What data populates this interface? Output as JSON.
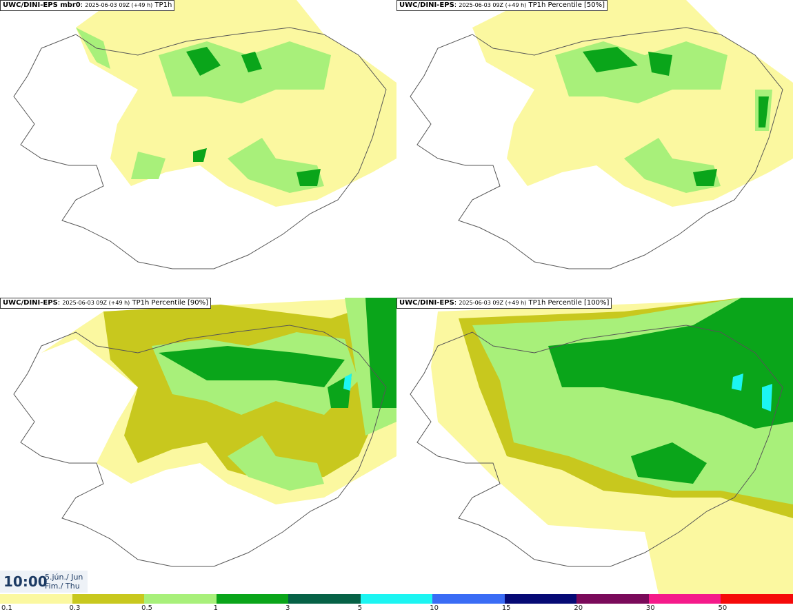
{
  "panels": [
    {
      "model": "UWC/DINI-EPS mbr0",
      "run": "2025-06-03 09Z (+49 h)",
      "field": "TP1h"
    },
    {
      "model": "UWC/DINI-EPS",
      "run": "2025-06-03 09Z (+49 h)",
      "field": "TP1h Percentile [50%]"
    },
    {
      "model": "UWC/DINI-EPS",
      "run": "2025-06-03 09Z (+49 h)",
      "field": "TP1h Percentile [90%]"
    },
    {
      "model": "UWC/DINI-EPS",
      "run": "2025-06-03 09Z (+49 h)",
      "field": "TP1h Percentile [100%]"
    }
  ],
  "valid_time": {
    "time": "10:00",
    "date": "5.jún./ Jun",
    "weekday": "Fim./ Thu"
  },
  "legend": {
    "labels": [
      "0.1",
      "0.3",
      "0.5",
      "1",
      "3",
      "5",
      "10",
      "15",
      "20",
      "30",
      "50"
    ],
    "colors": [
      "#fbf8a0",
      "#c8c81e",
      "#a8f07a",
      "#0aa51a",
      "#066246",
      "#1cf5f2",
      "#3a6cf5",
      "#060a75",
      "#7a0a5a",
      "#f51a8a",
      "#f50a0a"
    ]
  },
  "map_colors": {
    "lt": "#fbf8a0",
    "ol": "#c8c81e",
    "lg": "#a8f07a",
    "g": "#0aa51a",
    "dg": "#066246",
    "cy": "#1cf5f2",
    "coast": "#555555"
  }
}
